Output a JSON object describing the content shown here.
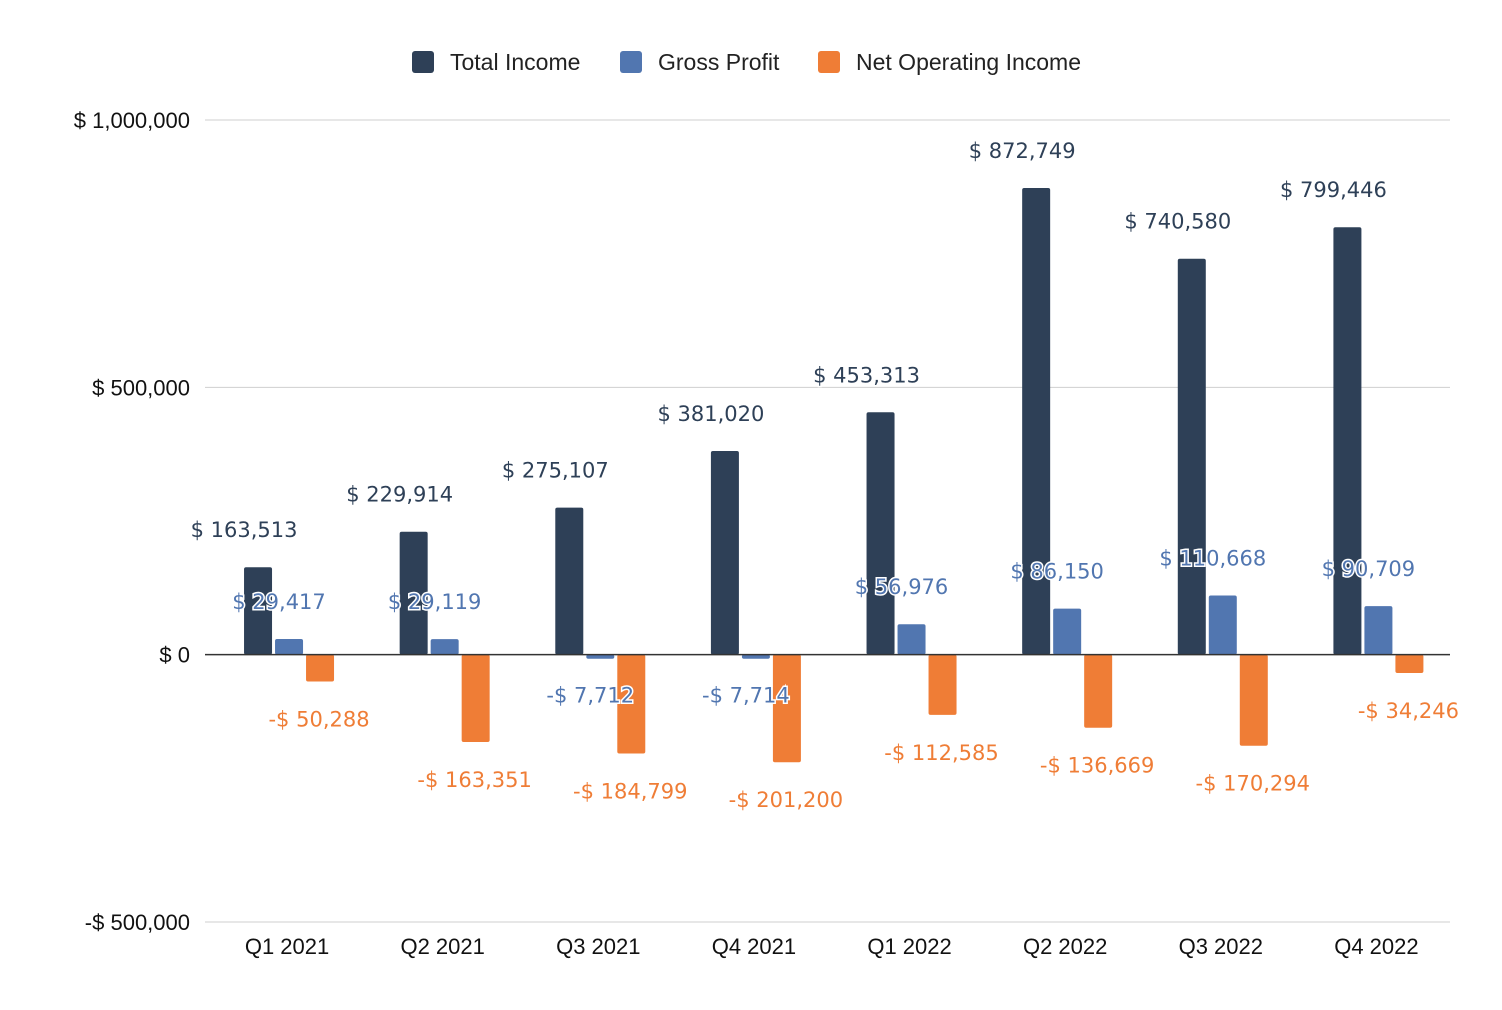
{
  "chart_data": {
    "type": "bar",
    "title": "",
    "xlabel": "",
    "ylabel": "",
    "categories": [
      "Q1 2021",
      "Q2 2021",
      "Q3 2021",
      "Q4 2021",
      "Q1 2022",
      "Q2 2022",
      "Q3 2022",
      "Q4 2022"
    ],
    "series": [
      {
        "name": "Total Income",
        "color": "#2e4057",
        "values": [
          163513,
          229914,
          275107,
          381020,
          453313,
          872749,
          740580,
          799446
        ],
        "labels": [
          "$ 163,513",
          "$ 229,914",
          "$ 275,107",
          "$ 381,020",
          "$ 453,313",
          "$ 872,749",
          "$ 740,580",
          "$ 799,446"
        ]
      },
      {
        "name": "Gross Profit",
        "color": "#5176b0",
        "values": [
          29417,
          29119,
          -7712,
          -7714,
          56976,
          86150,
          110668,
          90709
        ],
        "labels": [
          "$ 29,417",
          "$ 29,119",
          "-$ 7,712",
          "-$ 7,714",
          "$ 56,976",
          "$ 86,150",
          "$ 110,668",
          "$ 90,709"
        ]
      },
      {
        "name": "Net Operating Income",
        "color": "#ef7d36",
        "values": [
          -50288,
          -163351,
          -184799,
          -201200,
          -112585,
          -136669,
          -170294,
          -34246
        ],
        "labels": [
          "-$ 50,288",
          "-$ 163,351",
          "-$ 184,799",
          "-$ 201,200",
          "-$ 112,585",
          "-$ 136,669",
          "-$ 170,294",
          "-$ 34,246"
        ]
      }
    ],
    "ylim": [
      -500000,
      1000000
    ],
    "yticks": [
      {
        "value": 1000000,
        "label": "$ 1,000,000"
      },
      {
        "value": 500000,
        "label": "$ 500,000"
      },
      {
        "value": 0,
        "label": "$ 0"
      },
      {
        "value": -500000,
        "label": "-$ 500,000"
      }
    ],
    "grid": true,
    "legend_position": "top"
  }
}
